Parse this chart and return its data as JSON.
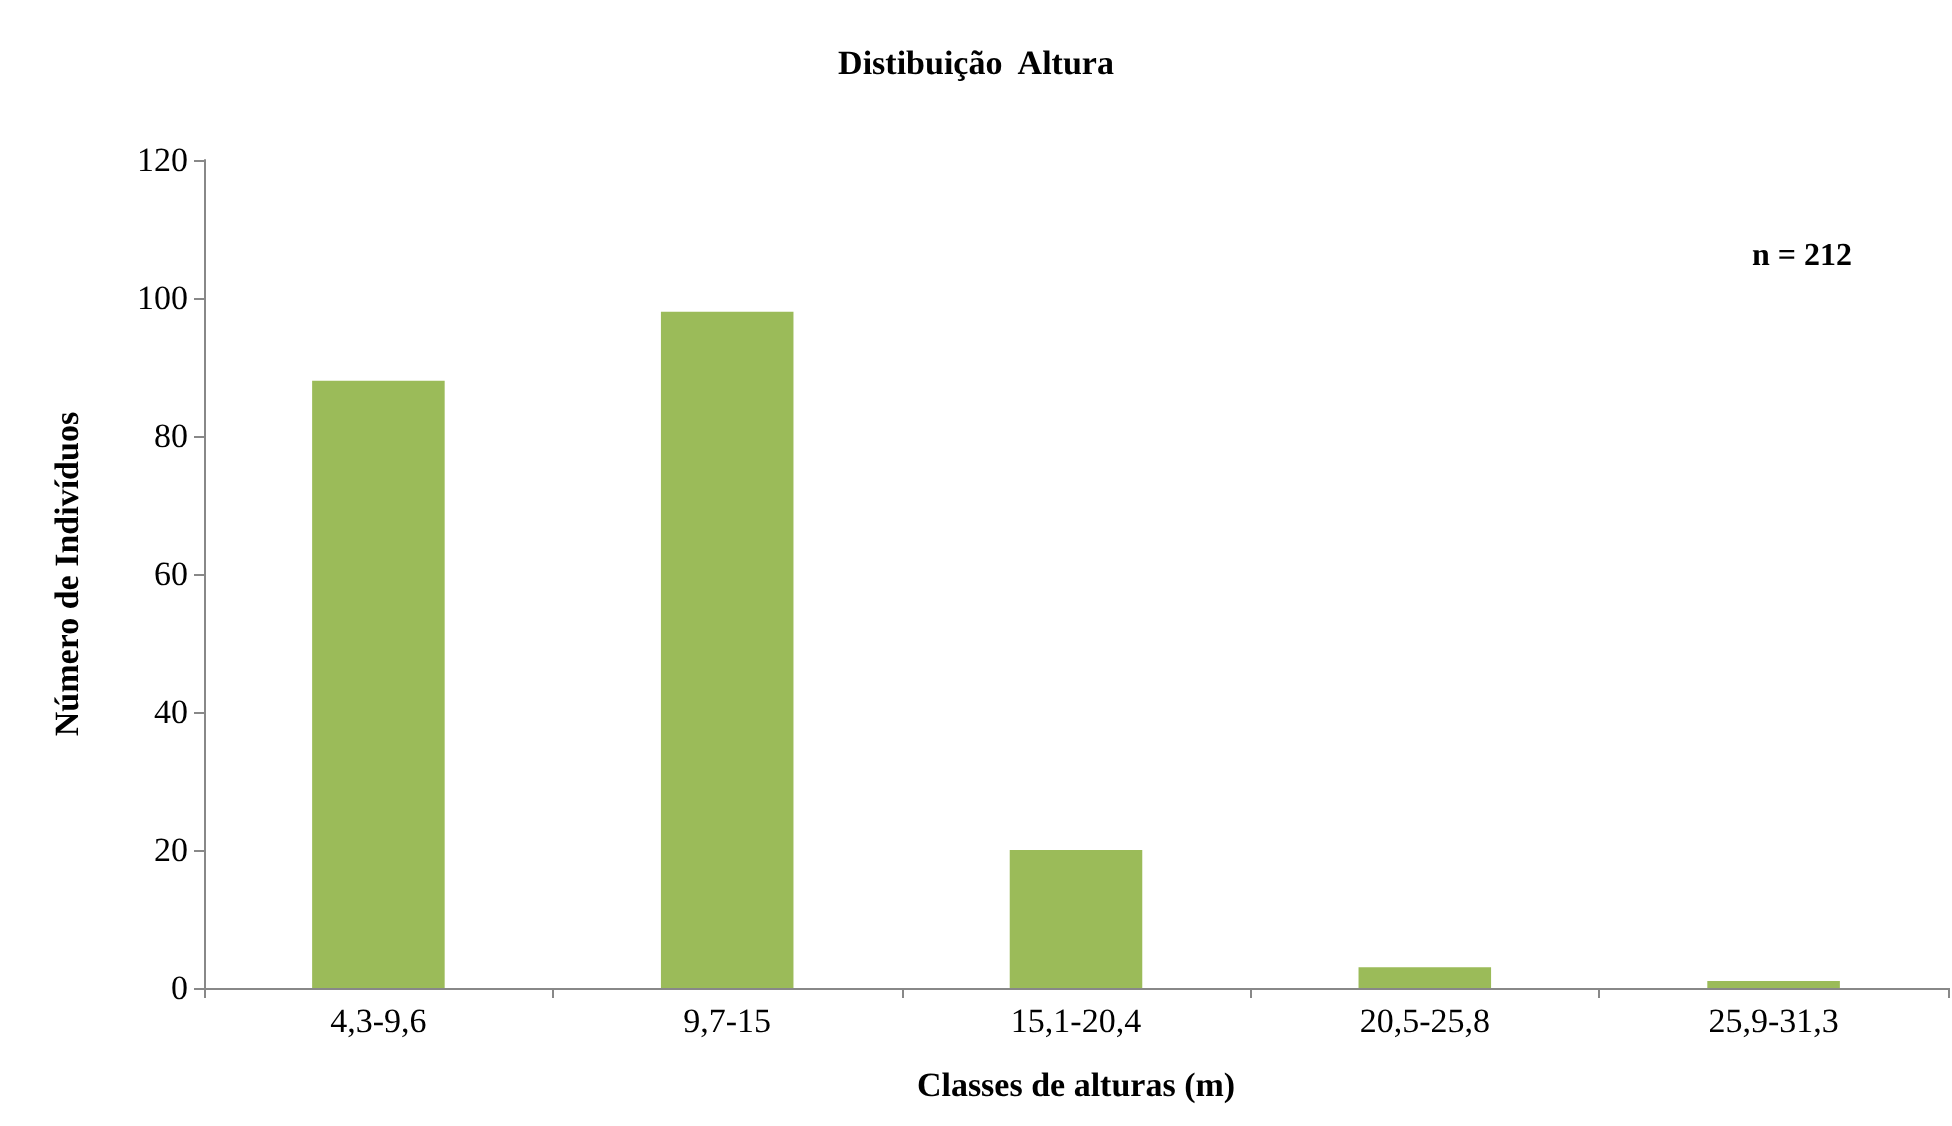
{
  "chart_data": {
    "type": "bar",
    "title": "Distibuição  Altura",
    "xlabel": "Classes de alturas (m)",
    "ylabel": "Número de Indivíduos",
    "categories": [
      "4,3-9,6",
      "9,7-15",
      "15,1-20,4",
      "20,5-25,8",
      "25,9-31,3"
    ],
    "values": [
      88,
      98,
      20,
      3,
      1
    ],
    "color": "#9bbb59",
    "ylim": [
      0,
      120
    ],
    "yticks": [
      0,
      20,
      40,
      60,
      80,
      100,
      120
    ],
    "grid": false,
    "annotations": [
      "n = 212"
    ]
  }
}
